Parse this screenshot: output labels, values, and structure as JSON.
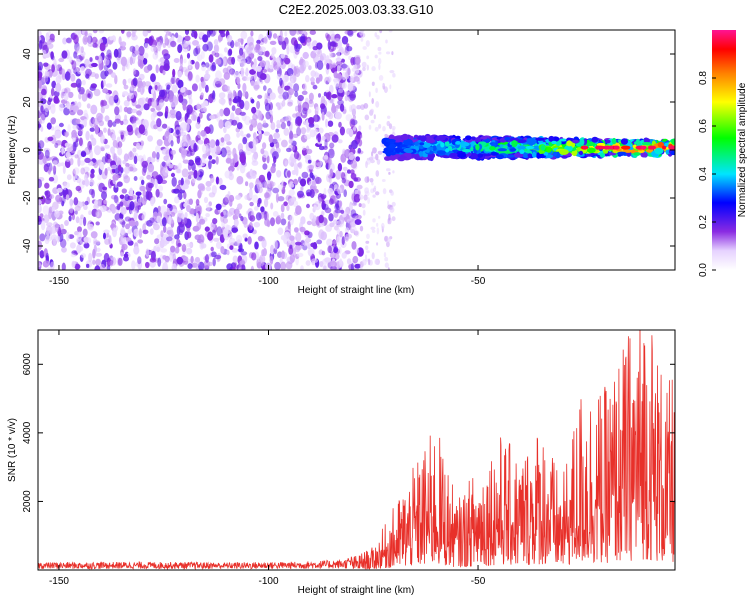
{
  "title": "C2E2.2025.003.03.33.G10",
  "chart_data": [
    {
      "type": "heatmap",
      "xlabel": "Height of straight line (km)",
      "ylabel": "Frequency (Hz)",
      "xlim": [
        -155,
        -3
      ],
      "ylim": [
        -50,
        50
      ],
      "xticks": [
        -150,
        -100,
        -50
      ],
      "yticks": [
        -40,
        -20,
        0,
        20,
        40
      ],
      "colorbar": {
        "label": "Normalized spectral amplitude",
        "range": [
          0,
          1
        ],
        "ticks": [
          0.0,
          0.2,
          0.4,
          0.6,
          0.8
        ],
        "colormap": [
          "#ffffff",
          "#e6d2ff",
          "#8a2be2",
          "#0000ff",
          "#00e5ff",
          "#00ff00",
          "#ffff00",
          "#ff8000",
          "#ff0000",
          "#ff1493"
        ]
      },
      "regions": [
        {
          "name": "noise",
          "x": [
            -155,
            -78
          ],
          "y": [
            -50,
            50
          ],
          "amplitude": 0.05
        },
        {
          "name": "transition",
          "x": [
            -78,
            -70
          ],
          "y": [
            -50,
            50
          ],
          "amplitude": 0.03
        },
        {
          "name": "signal_band",
          "x": [
            -72,
            -3
          ],
          "center_freq": 1,
          "half_width": 4,
          "amplitude_start": 0.3,
          "amplitude_end": 0.95
        }
      ]
    },
    {
      "type": "line",
      "xlabel": "Height of straight line (km)",
      "ylabel": "SNR (10 * v/v)",
      "xlim": [
        -155,
        -3
      ],
      "ylim": [
        0,
        7000
      ],
      "xticks": [
        -150,
        -100,
        -50
      ],
      "yticks": [
        2000,
        4000,
        6000
      ],
      "line_color": "#e8302a",
      "grid": false,
      "series": [
        {
          "x": [
            -155,
            -130,
            -110,
            -95,
            -82,
            -75,
            -70,
            -65,
            -60,
            -55,
            -50,
            -45,
            -40,
            -35,
            -30,
            -25,
            -20,
            -15,
            -10,
            -5,
            -3
          ],
          "y": [
            150,
            160,
            150,
            160,
            200,
            500,
            1400,
            2300,
            3200,
            1500,
            2300,
            3000,
            2500,
            3300,
            1900,
            4200,
            3900,
            5000,
            6200,
            3900,
            4500
          ]
        }
      ]
    }
  ]
}
